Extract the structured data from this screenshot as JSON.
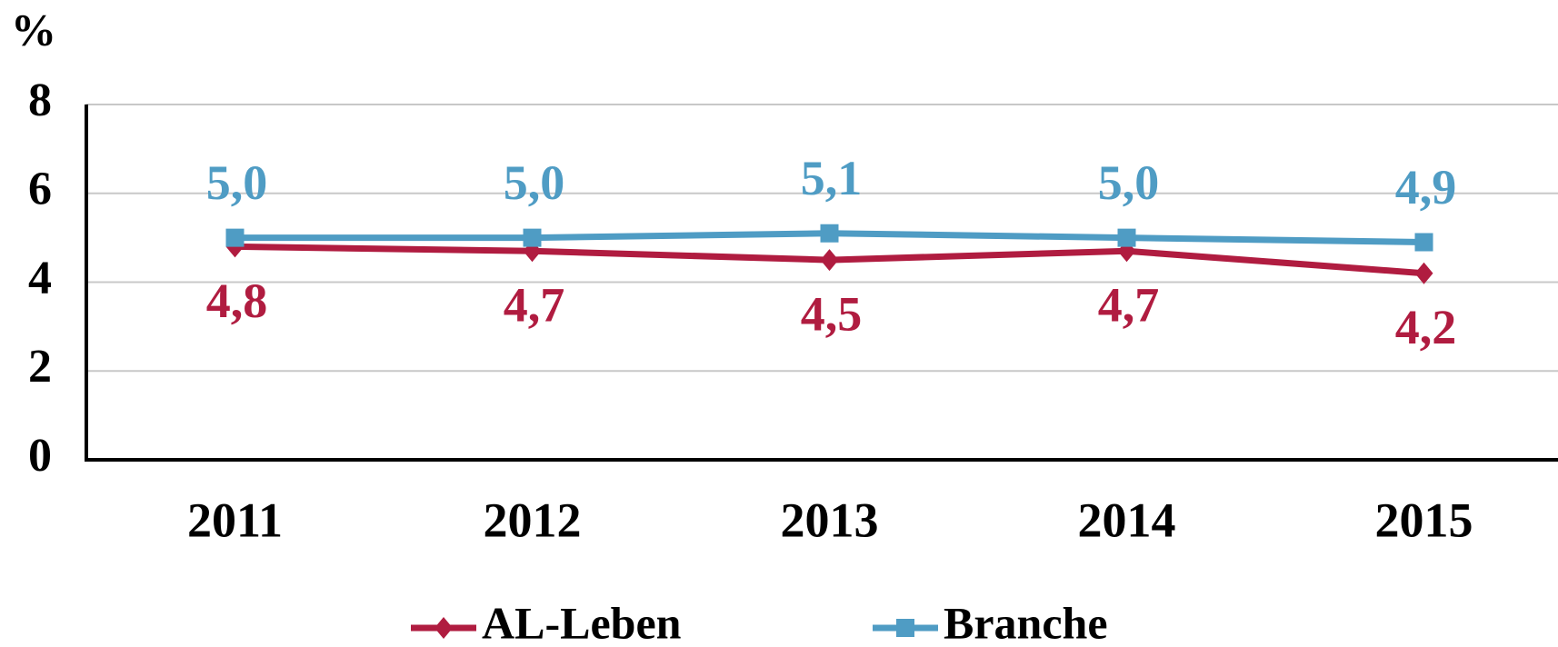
{
  "chart_data": {
    "type": "line",
    "ylabel": "%",
    "categories": [
      "2011",
      "2012",
      "2013",
      "2014",
      "2015"
    ],
    "ylim": [
      0,
      8
    ],
    "yticks": [
      0,
      2,
      4,
      6,
      8
    ],
    "grid": true,
    "legend": "bottom",
    "series": [
      {
        "name": "AL-Leben",
        "color": "#b01c40",
        "marker": "diamond",
        "values": [
          4.8,
          4.7,
          4.5,
          4.7,
          4.2
        ],
        "value_labels": [
          "4,8",
          "4,7",
          "4,5",
          "4,7",
          "4,2"
        ]
      },
      {
        "name": "Branche",
        "color": "#4f9cc4",
        "marker": "square",
        "values": [
          5.0,
          5.0,
          5.1,
          5.0,
          4.9
        ],
        "value_labels": [
          "5,0",
          "5,0",
          "5,1",
          "5,0",
          "4,9"
        ]
      }
    ]
  }
}
